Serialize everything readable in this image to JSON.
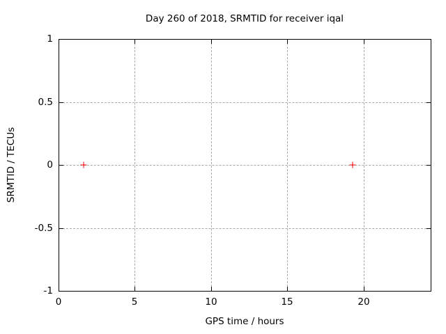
{
  "chart_data": {
    "type": "scatter",
    "title": "Day 260 of 2018, SRMTID for receiver iqal",
    "xlabel": "GPS time / hours",
    "ylabel": "SRMTID / TECUs",
    "xlim": [
      0,
      24.4
    ],
    "ylim": [
      -1,
      1
    ],
    "xticks": [
      0,
      5,
      10,
      15,
      20
    ],
    "xtick_labels": [
      "0",
      "5",
      "10",
      "15",
      "20"
    ],
    "yticks": [
      -1,
      -0.5,
      0,
      0.5,
      1
    ],
    "ytick_labels": [
      "-1",
      "-0.5",
      "0",
      "0.5",
      "1"
    ],
    "grid": true,
    "grid_style": "dashed",
    "legend": "none",
    "series": [
      {
        "name": "SRMTID",
        "marker": "plus",
        "color": "#ff0000",
        "points": [
          [
            1.65,
            0
          ],
          [
            19.3,
            0
          ]
        ]
      }
    ]
  },
  "colors": {
    "background": "#ffffff",
    "plot_border": "#000000",
    "grid": "#a8a8a8",
    "text": "#000000",
    "marker": "#ff0000"
  }
}
